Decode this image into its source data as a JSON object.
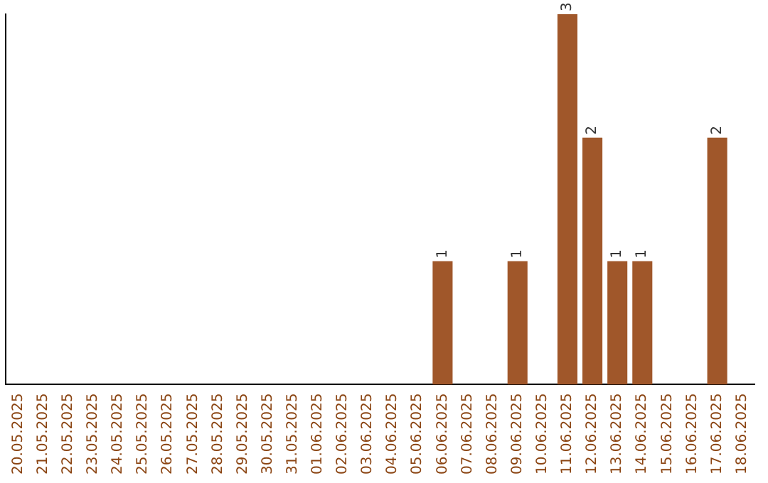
{
  "chart_data": {
    "type": "bar",
    "categories": [
      "20.05.2025",
      "21.05.2025",
      "22.05.2025",
      "23.05.2025",
      "24.05.2025",
      "25.05.2025",
      "26.05.2025",
      "27.05.2025",
      "28.05.2025",
      "29.05.2025",
      "30.05.2025",
      "31.05.2025",
      "01.06.2025",
      "02.06.2025",
      "03.06.2025",
      "04.06.2025",
      "05.06.2025",
      "06.06.2025",
      "07.06.2025",
      "08.06.2025",
      "09.06.2025",
      "10.06.2025",
      "11.06.2025",
      "12.06.2025",
      "13.06.2025",
      "14.06.2025",
      "15.06.2025",
      "16.06.2025",
      "17.06.2025",
      "18.06.2025"
    ],
    "values": [
      null,
      null,
      null,
      null,
      null,
      null,
      null,
      null,
      null,
      null,
      null,
      null,
      null,
      null,
      null,
      null,
      null,
      1,
      null,
      null,
      1,
      null,
      3,
      2,
      1,
      1,
      null,
      null,
      2,
      null
    ],
    "data_labels": true,
    "color": "#a0572a",
    "ylim": [
      0,
      3
    ],
    "tick_labels": "x",
    "grid": false,
    "legend": false
  }
}
